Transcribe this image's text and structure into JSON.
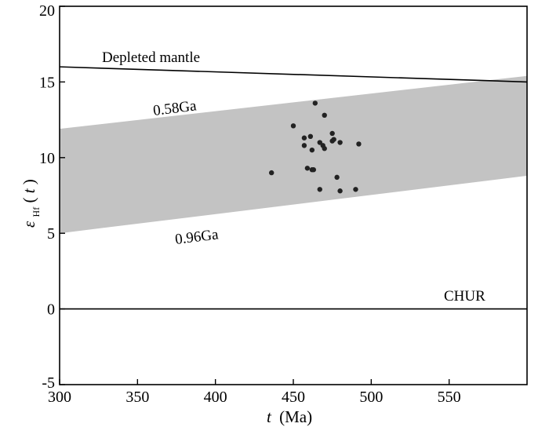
{
  "chart_data": {
    "type": "scatter",
    "xlabel": "t (Ma)",
    "ylabel": "εHf(t)",
    "xlim": [
      300,
      600
    ],
    "ylim": [
      -5,
      20
    ],
    "xticks": [
      300,
      350,
      400,
      450,
      500,
      550
    ],
    "yticks": [
      -5,
      0,
      5,
      10,
      15,
      20
    ],
    "lines": [
      {
        "name": "Depleted mantle",
        "x": [
          300,
          600
        ],
        "y": [
          16.0,
          15.0
        ]
      },
      {
        "name": "CHUR",
        "x": [
          300,
          600
        ],
        "y": [
          0,
          0
        ]
      }
    ],
    "band": {
      "upper_label": "0.58Ga",
      "lower_label": "0.96Ga",
      "upper": {
        "x": [
          300,
          600
        ],
        "y": [
          11.9,
          15.4
        ]
      },
      "lower": {
        "x": [
          300,
          600
        ],
        "y": [
          5.0,
          8.8
        ]
      },
      "color": "#c3c3c3"
    },
    "points": {
      "color": "#222222",
      "x": [
        436,
        450,
        457,
        457,
        459,
        461,
        462,
        462,
        464,
        463,
        467,
        467,
        469,
        470,
        470,
        475,
        475,
        476,
        478,
        480,
        480,
        490,
        492
      ],
      "y": [
        9.0,
        12.1,
        11.3,
        10.8,
        9.3,
        11.4,
        10.5,
        9.2,
        13.6,
        9.2,
        11.0,
        7.9,
        10.8,
        10.6,
        12.8,
        11.1,
        11.6,
        11.2,
        8.7,
        11.0,
        7.8,
        7.9,
        10.9
      ]
    },
    "annotations": {
      "depleted_mantle": "Depleted mantle",
      "chur": "CHUR",
      "upper_age": "0.58Ga",
      "lower_age": "0.96Ga"
    },
    "axis_text": {
      "x_italic": "t",
      "x_rest": "(Ma)",
      "y_symbol": "ε",
      "y_sub": "Hf",
      "y_open": "(",
      "y_t": "t",
      "y_close": ")"
    }
  }
}
